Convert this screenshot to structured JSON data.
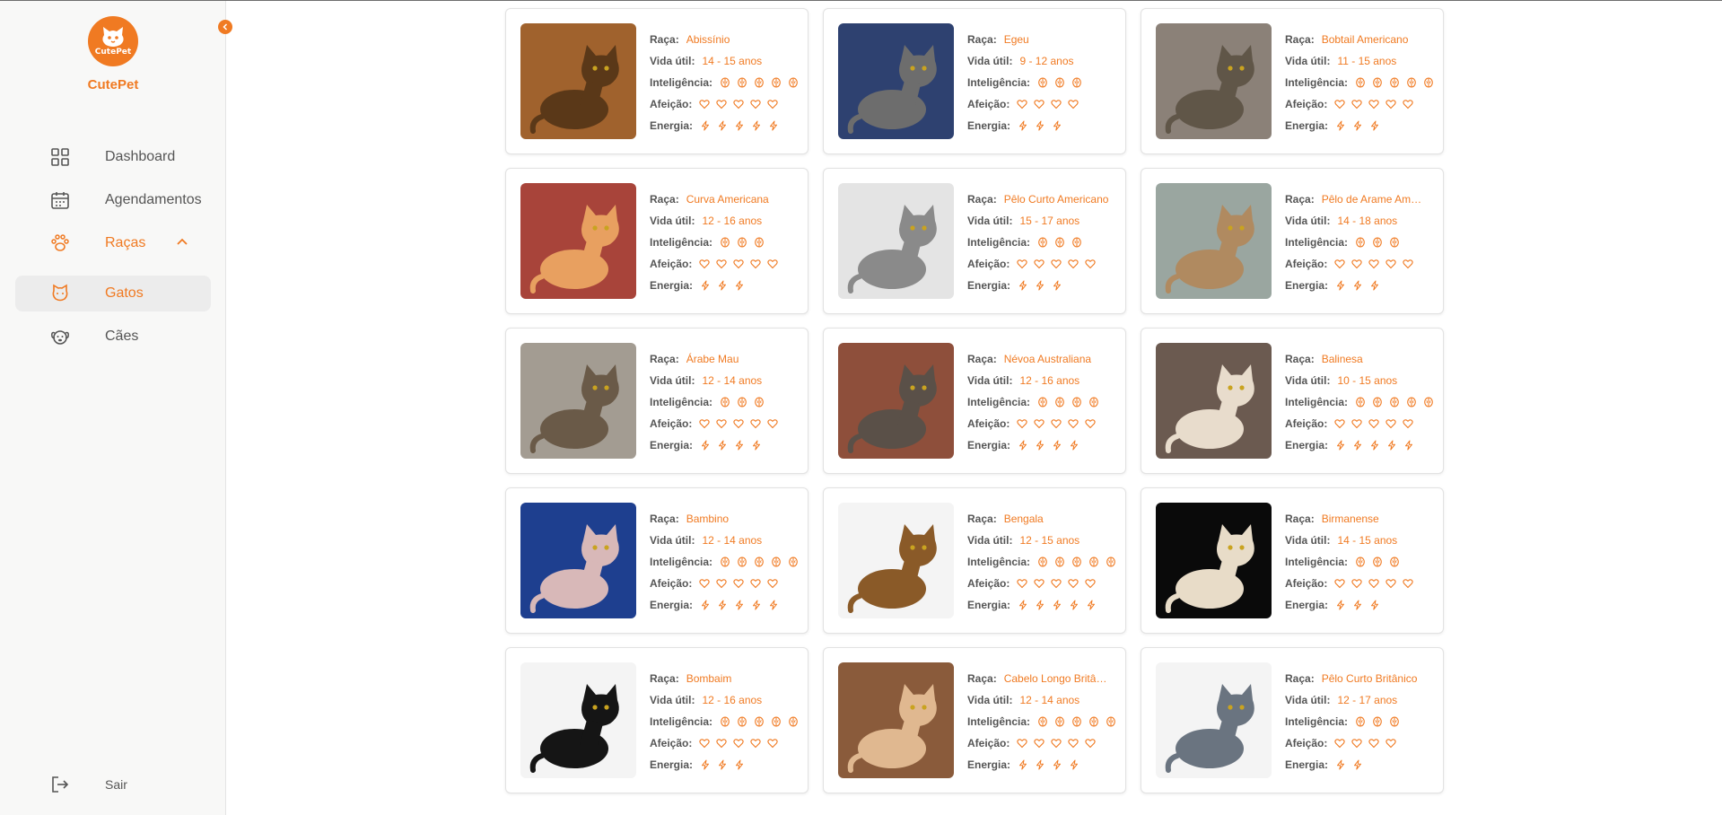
{
  "app": {
    "name": "CutePet",
    "logo_text": "CutePet"
  },
  "colors": {
    "accent": "#f07a22",
    "sidebar_bg": "#f8f8f7",
    "active_bg": "#ececec"
  },
  "sidebar": {
    "items": [
      {
        "label": "Dashboard",
        "icon": "grid-icon"
      },
      {
        "label": "Agendamentos",
        "icon": "calendar-icon"
      },
      {
        "label": "Raças",
        "icon": "paw-icon",
        "expanded": true
      },
      {
        "label": "Gatos",
        "icon": "cat-icon",
        "active": true
      },
      {
        "label": "Cães",
        "icon": "dog-icon"
      }
    ],
    "logout": {
      "label": "Sair",
      "icon": "logout-icon"
    }
  },
  "labels": {
    "breed": "Raça:",
    "lifespan": "Vida útil:",
    "intelligence": "Inteligência:",
    "affection": "Afeição:",
    "energy": "Energia:"
  },
  "breeds": [
    {
      "name": "Abissínio",
      "lifespan": "14 - 15 anos",
      "intelligence": 5,
      "affection": 5,
      "energy": 5,
      "photo_color": "#a0622d"
    },
    {
      "name": "Egeu",
      "lifespan": "9 - 12 anos",
      "intelligence": 3,
      "affection": 4,
      "energy": 3,
      "photo_color": "#2e4170"
    },
    {
      "name": "Bobtail Americano",
      "lifespan": "11 - 15 anos",
      "intelligence": 5,
      "affection": 5,
      "energy": 3,
      "photo_color": "#8b8178"
    },
    {
      "name": "Curva Americana",
      "lifespan": "12 - 16 anos",
      "intelligence": 3,
      "affection": 5,
      "energy": 3,
      "photo_color": "#a8443a"
    },
    {
      "name": "Pêlo Curto Americano",
      "lifespan": "15 - 17 anos",
      "intelligence": 3,
      "affection": 5,
      "energy": 3,
      "photo_color": "#e4e4e4"
    },
    {
      "name": "Pêlo de Arame Americano",
      "lifespan": "14 - 18 anos",
      "intelligence": 3,
      "affection": 5,
      "energy": 3,
      "photo_color": "#9aa6a0"
    },
    {
      "name": "Árabe Mau",
      "lifespan": "12 - 14 anos",
      "intelligence": 3,
      "affection": 5,
      "energy": 4,
      "photo_color": "#a39c92"
    },
    {
      "name": "Névoa Australiana",
      "lifespan": "12 - 16 anos",
      "intelligence": 4,
      "affection": 5,
      "energy": 4,
      "photo_color": "#8e4f3b"
    },
    {
      "name": "Balinesa",
      "lifespan": "10 - 15 anos",
      "intelligence": 5,
      "affection": 5,
      "energy": 5,
      "photo_color": "#6b5a50"
    },
    {
      "name": "Bambino",
      "lifespan": "12 - 14 anos",
      "intelligence": 5,
      "affection": 5,
      "energy": 5,
      "photo_color": "#1e3f8f"
    },
    {
      "name": "Bengala",
      "lifespan": "12 - 15 anos",
      "intelligence": 5,
      "affection": 5,
      "energy": 5,
      "photo_color": "#f4f4f4"
    },
    {
      "name": "Birmanense",
      "lifespan": "14 - 15 anos",
      "intelligence": 3,
      "affection": 5,
      "energy": 3,
      "photo_color": "#0a0a0a"
    },
    {
      "name": "Bombaim",
      "lifespan": "12 - 16 anos",
      "intelligence": 5,
      "affection": 5,
      "energy": 3,
      "photo_color": "#f4f4f4"
    },
    {
      "name": "Cabelo Longo Britânico",
      "lifespan": "12 - 14 anos",
      "intelligence": 5,
      "affection": 5,
      "energy": 4,
      "photo_color": "#8a5b3b"
    },
    {
      "name": "Pêlo Curto Britânico",
      "lifespan": "12 - 17 anos",
      "intelligence": 3,
      "affection": 4,
      "energy": 2,
      "photo_color": "#f4f4f4"
    }
  ]
}
